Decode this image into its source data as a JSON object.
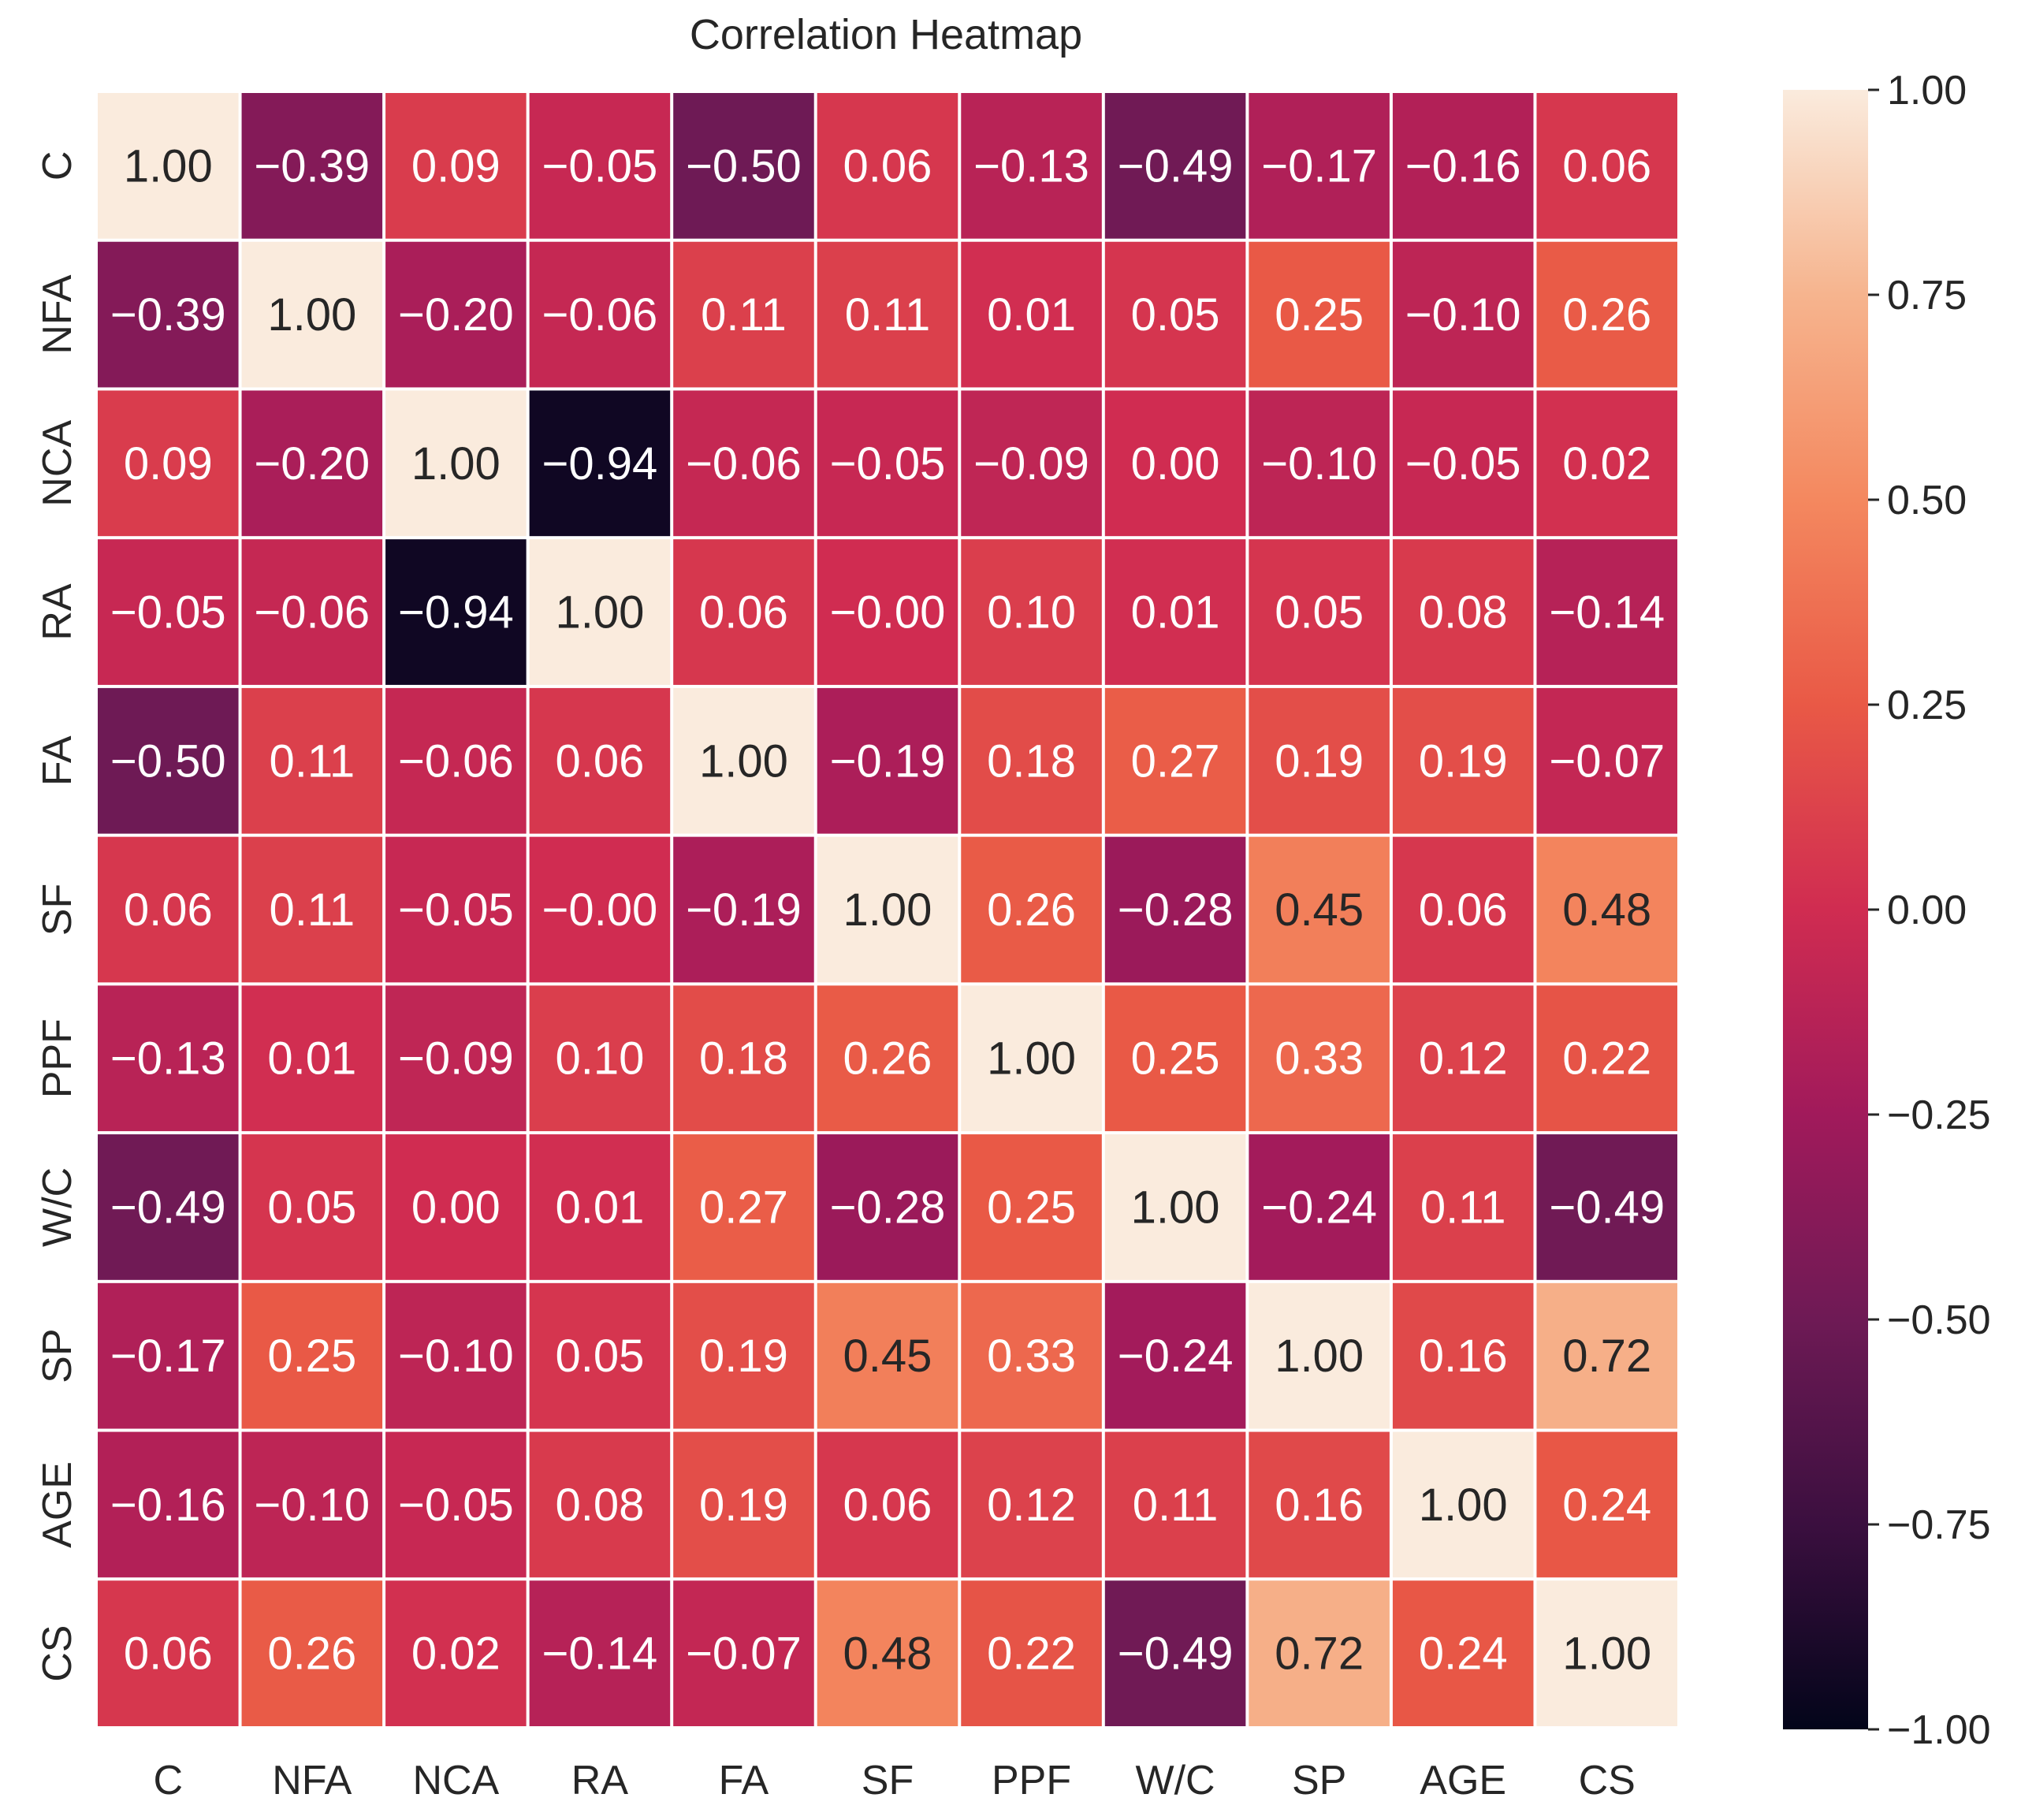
{
  "chart_data": {
    "type": "heatmap",
    "title": "Correlation Heatmap",
    "xlabel": "",
    "ylabel": "",
    "labels": [
      "C",
      "NFA",
      "NCA",
      "RA",
      "FA",
      "SF",
      "PPF",
      "W/C",
      "SP",
      "AGE",
      "CS"
    ],
    "values": [
      [
        1.0,
        -0.39,
        0.09,
        -0.05,
        -0.5,
        0.06,
        -0.13,
        -0.49,
        -0.17,
        -0.16,
        0.06
      ],
      [
        -0.39,
        1.0,
        -0.2,
        -0.06,
        0.11,
        0.11,
        0.01,
        0.05,
        0.25,
        -0.1,
        0.26
      ],
      [
        0.09,
        -0.2,
        1.0,
        -0.94,
        -0.06,
        -0.05,
        -0.09,
        0.0,
        -0.1,
        -0.05,
        0.02
      ],
      [
        -0.05,
        -0.06,
        -0.94,
        1.0,
        0.06,
        -0.0,
        0.1,
        0.01,
        0.05,
        0.08,
        -0.14
      ],
      [
        -0.5,
        0.11,
        -0.06,
        0.06,
        1.0,
        -0.19,
        0.18,
        0.27,
        0.19,
        0.19,
        -0.07
      ],
      [
        0.06,
        0.11,
        -0.05,
        -0.0,
        -0.19,
        1.0,
        0.26,
        -0.28,
        0.45,
        0.06,
        0.48
      ],
      [
        -0.13,
        0.01,
        -0.09,
        0.1,
        0.18,
        0.26,
        1.0,
        0.25,
        0.33,
        0.12,
        0.22
      ],
      [
        -0.49,
        0.05,
        0.0,
        0.01,
        0.27,
        -0.28,
        0.25,
        1.0,
        -0.24,
        0.11,
        -0.49
      ],
      [
        -0.17,
        0.25,
        -0.1,
        0.05,
        0.19,
        0.45,
        0.33,
        -0.24,
        1.0,
        0.16,
        0.72
      ],
      [
        -0.16,
        -0.1,
        -0.05,
        0.08,
        0.19,
        0.06,
        0.12,
        0.11,
        0.16,
        1.0,
        0.24
      ],
      [
        0.06,
        0.26,
        0.02,
        -0.14,
        -0.07,
        0.48,
        0.22,
        -0.49,
        0.72,
        0.24,
        1.0
      ]
    ],
    "display_values": [
      [
        "1.00",
        "−0.39",
        "0.09",
        "−0.05",
        "−0.50",
        "0.06",
        "−0.13",
        "−0.49",
        "−0.17",
        "−0.16",
        "0.06"
      ],
      [
        "−0.39",
        "1.00",
        "−0.20",
        "−0.06",
        "0.11",
        "0.11",
        "0.01",
        "0.05",
        "0.25",
        "−0.10",
        "0.26"
      ],
      [
        "0.09",
        "−0.20",
        "1.00",
        "−0.94",
        "−0.06",
        "−0.05",
        "−0.09",
        "0.00",
        "−0.10",
        "−0.05",
        "0.02"
      ],
      [
        "−0.05",
        "−0.06",
        "−0.94",
        "1.00",
        "0.06",
        "−0.00",
        "0.10",
        "0.01",
        "0.05",
        "0.08",
        "−0.14"
      ],
      [
        "−0.50",
        "0.11",
        "−0.06",
        "0.06",
        "1.00",
        "−0.19",
        "0.18",
        "0.27",
        "0.19",
        "0.19",
        "−0.07"
      ],
      [
        "0.06",
        "0.11",
        "−0.05",
        "−0.00",
        "−0.19",
        "1.00",
        "0.26",
        "−0.28",
        "0.45",
        "0.06",
        "0.48"
      ],
      [
        "−0.13",
        "0.01",
        "−0.09",
        "0.10",
        "0.18",
        "0.26",
        "1.00",
        "0.25",
        "0.33",
        "0.12",
        "0.22"
      ],
      [
        "−0.49",
        "0.05",
        "0.00",
        "0.01",
        "0.27",
        "−0.28",
        "0.25",
        "1.00",
        "−0.24",
        "0.11",
        "−0.49"
      ],
      [
        "−0.17",
        "0.25",
        "−0.10",
        "0.05",
        "0.19",
        "0.45",
        "0.33",
        "−0.24",
        "1.00",
        "0.16",
        "0.72"
      ],
      [
        "−0.16",
        "−0.10",
        "−0.05",
        "0.08",
        "0.19",
        "0.06",
        "0.12",
        "0.11",
        "0.16",
        "1.00",
        "0.24"
      ],
      [
        "0.06",
        "0.26",
        "0.02",
        "−0.14",
        "−0.07",
        "0.48",
        "0.22",
        "−0.49",
        "0.72",
        "0.24",
        "1.00"
      ]
    ],
    "colorbar": {
      "range": [
        -1.0,
        1.0
      ],
      "ticks": [
        1.0,
        0.75,
        0.5,
        0.25,
        0.0,
        -0.25,
        -0.5,
        -0.75,
        -1.0
      ],
      "tick_labels": [
        "1.00",
        "0.75",
        "0.50",
        "0.25",
        "0.00",
        "−0.25",
        "−0.50",
        "−0.75",
        "−1.00"
      ],
      "colormap": "rocket",
      "placement": "right"
    },
    "colors": {
      "background": "#ffffff",
      "grid_lines": "#ffffff",
      "text_light": "#ffffff",
      "text_dark": "#262626",
      "colormap_stops": [
        "#03051a",
        "#3b0f3f",
        "#6e1a55",
        "#a11a5b",
        "#d02c51",
        "#e95946",
        "#f4885f",
        "#f6b48e",
        "#faebdd"
      ]
    }
  }
}
